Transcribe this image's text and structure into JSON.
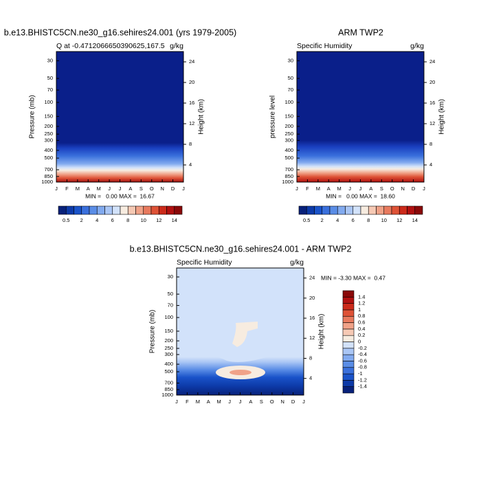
{
  "chart_data": [
    {
      "type": "contour",
      "title": "b.e13.BHISTC5CN.ne30_g16.sehires24.001 (yrs 1979-2005)",
      "subtitle_left": "Q at -0.4712066650390625,167.5",
      "subtitle_right": "g/kg",
      "ylabel": "Pressure (mb)",
      "y2label": "Height (km)",
      "categories": [
        "J",
        "F",
        "M",
        "A",
        "M",
        "J",
        "J",
        "A",
        "S",
        "O",
        "N",
        "D",
        "J"
      ],
      "log_y": true,
      "ylim": [
        1000,
        23
      ],
      "yticks": [
        30,
        50,
        70,
        100,
        150,
        200,
        250,
        300,
        400,
        500,
        700,
        850,
        1000
      ],
      "y2lim": [
        0.67,
        26
      ],
      "y2ticks": [
        4,
        8,
        12,
        16,
        20,
        24
      ],
      "stats": "MIN =   0.00 MAX =  16.67",
      "colorbar": {
        "orientation": "horizontal",
        "levels": [
          0.5,
          1,
          2,
          3,
          4,
          5,
          6,
          7,
          8,
          9,
          10,
          11,
          12,
          13,
          14
        ],
        "labels": [
          0.5,
          2,
          4,
          6,
          8,
          10,
          12,
          14
        ],
        "colors": [
          "#08217a",
          "#0d3aa8",
          "#1a53c9",
          "#3a70dc",
          "#5a8de6",
          "#82aaef",
          "#aac6f5",
          "#d2e2fa",
          "#f7ece0",
          "#f6c9b4",
          "#f0a288",
          "#e87a5e",
          "#de5236",
          "#cc2a1a",
          "#b01010",
          "#8a0808"
        ]
      }
    },
    {
      "type": "contour",
      "title": "ARM TWP2",
      "subtitle_left": "Specific Humidity",
      "subtitle_right": "g/kg",
      "ylabel": "pressure level",
      "y2label": "Height (km)",
      "categories": [
        "J",
        "F",
        "M",
        "A",
        "M",
        "J",
        "J",
        "A",
        "S",
        "O",
        "N",
        "D",
        "J"
      ],
      "log_y": true,
      "ylim": [
        1000,
        23
      ],
      "yticks": [
        30,
        50,
        70,
        100,
        150,
        200,
        250,
        300,
        400,
        500,
        700,
        850,
        1000
      ],
      "y2lim": [
        0.67,
        26
      ],
      "y2ticks": [
        4,
        8,
        12,
        16,
        20,
        24
      ],
      "stats": "MIN =   0.00 MAX =  18.60",
      "colorbar": {
        "orientation": "horizontal",
        "levels": [
          0.5,
          1,
          2,
          3,
          4,
          5,
          6,
          7,
          8,
          9,
          10,
          11,
          12,
          13,
          14
        ],
        "labels": [
          0.5,
          2,
          4,
          6,
          8,
          10,
          12,
          14
        ],
        "colors": [
          "#08217a",
          "#0d3aa8",
          "#1a53c9",
          "#3a70dc",
          "#5a8de6",
          "#82aaef",
          "#aac6f5",
          "#d2e2fa",
          "#f7ece0",
          "#f6c9b4",
          "#f0a288",
          "#e87a5e",
          "#de5236",
          "#cc2a1a",
          "#b01010",
          "#8a0808"
        ]
      }
    },
    {
      "type": "contour",
      "title": "b.e13.BHISTC5CN.ne30_g16.sehires24.001 - ARM TWP2",
      "subtitle_left": "Specific Humidity",
      "subtitle_right": "g/kg",
      "ylabel": "Pressure (mb)",
      "y2label": "Height (km)",
      "categories": [
        "J",
        "F",
        "M",
        "A",
        "M",
        "J",
        "J",
        "A",
        "S",
        "O",
        "N",
        "D",
        "J"
      ],
      "log_y": true,
      "ylim": [
        1000,
        23
      ],
      "yticks": [
        30,
        50,
        70,
        100,
        150,
        200,
        250,
        300,
        400,
        500,
        700,
        850,
        1000
      ],
      "y2lim": [
        0.67,
        26
      ],
      "y2ticks": [
        4,
        8,
        12,
        16,
        20,
        24
      ],
      "stats": "MIN = -3.30 MAX =  0.47",
      "colorbar": {
        "orientation": "vertical",
        "levels": [
          -1.4,
          -1.2,
          -1,
          -0.8,
          -0.6,
          -0.4,
          -0.2,
          0,
          0.2,
          0.4,
          0.6,
          0.8,
          1,
          1.2,
          1.4
        ],
        "colors": [
          "#08217a",
          "#0d3aa8",
          "#1a53c9",
          "#3a70dc",
          "#5a8de6",
          "#82aaef",
          "#aac6f5",
          "#d2e2fa",
          "#f7ece0",
          "#f6c9b4",
          "#f0a288",
          "#e87a5e",
          "#de5236",
          "#cc2a1a",
          "#b01010",
          "#8a0808"
        ]
      }
    }
  ]
}
